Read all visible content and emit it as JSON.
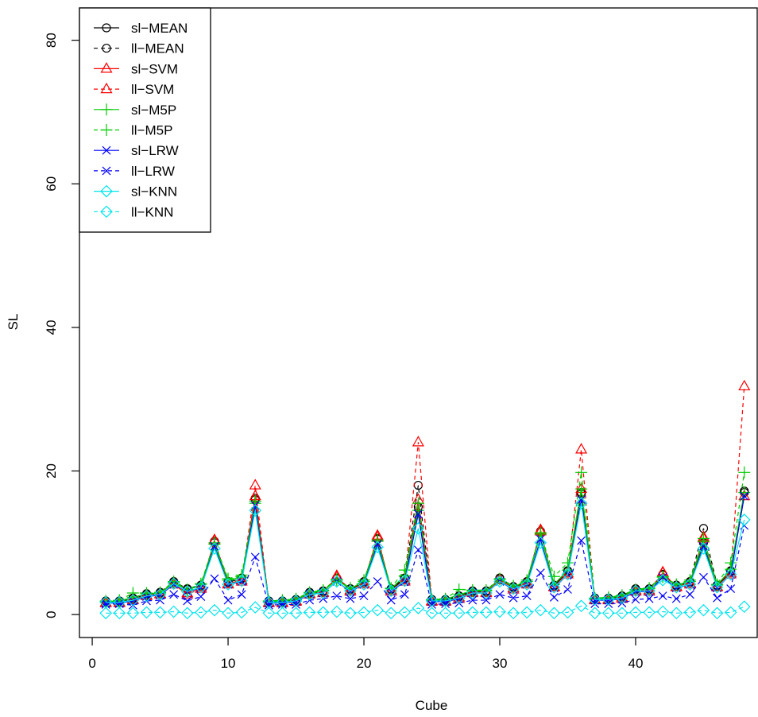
{
  "chart_data": {
    "type": "line",
    "xlabel": "Cube",
    "ylabel": "SL",
    "x": [
      1,
      2,
      3,
      4,
      5,
      6,
      7,
      8,
      9,
      10,
      11,
      12,
      13,
      14,
      15,
      16,
      17,
      18,
      19,
      20,
      21,
      22,
      23,
      24,
      25,
      26,
      27,
      28,
      29,
      30,
      31,
      32,
      33,
      34,
      35,
      36,
      37,
      38,
      39,
      40,
      41,
      42,
      43,
      44,
      45,
      46,
      47,
      48
    ],
    "xlim": [
      -0.94,
      48.95
    ],
    "ylim": [
      -3.2,
      84.5
    ],
    "xticks": [
      0,
      10,
      20,
      30,
      40
    ],
    "yticks": [
      0,
      20,
      40,
      60,
      80
    ],
    "legend": "top-left",
    "series": [
      {
        "name": "sl−MEAN",
        "color": "#000000",
        "linestyle": "solid",
        "marker": "circle",
        "values": [
          1.8,
          1.8,
          2.2,
          2.8,
          3.0,
          4.5,
          3.5,
          4.0,
          10.0,
          4.5,
          5.0,
          16.0,
          1.8,
          1.8,
          2.0,
          3.0,
          3.2,
          5.0,
          3.5,
          4.5,
          10.5,
          3.5,
          5.0,
          15.0,
          2.0,
          2.0,
          2.5,
          3.2,
          3.2,
          5.0,
          3.8,
          4.5,
          11.5,
          4.0,
          6.0,
          17.0,
          2.2,
          2.2,
          2.5,
          3.5,
          3.5,
          5.5,
          4.0,
          4.5,
          10.0,
          4.0,
          6.0,
          17.0
        ]
      },
      {
        "name": "ll−MEAN",
        "color": "#000000",
        "linestyle": "dashed",
        "marker": "circle",
        "values": [
          1.9,
          1.9,
          2.3,
          2.9,
          3.1,
          4.6,
          3.6,
          4.1,
          10.2,
          4.6,
          5.1,
          16.2,
          1.9,
          1.9,
          2.1,
          3.1,
          3.3,
          5.1,
          3.6,
          4.6,
          10.6,
          3.6,
          5.1,
          18.0,
          2.1,
          2.1,
          2.6,
          3.3,
          3.3,
          5.1,
          3.9,
          4.6,
          11.6,
          4.1,
          6.1,
          16.8,
          2.3,
          2.3,
          2.6,
          3.6,
          3.6,
          5.6,
          4.1,
          4.6,
          12.0,
          4.1,
          6.1,
          17.2
        ]
      },
      {
        "name": "sl−SVM",
        "color": "#ff0000",
        "linestyle": "solid",
        "marker": "triangle",
        "values": [
          1.7,
          1.7,
          2.1,
          2.7,
          2.9,
          4.4,
          3.0,
          3.8,
          10.3,
          4.3,
          4.8,
          16.5,
          1.7,
          1.7,
          1.9,
          2.9,
          3.1,
          5.2,
          3.4,
          4.4,
          10.8,
          3.4,
          4.8,
          16.0,
          1.9,
          1.9,
          2.4,
          3.1,
          3.1,
          4.9,
          3.7,
          4.4,
          11.6,
          3.9,
          5.8,
          17.5,
          2.1,
          2.1,
          2.4,
          3.4,
          3.4,
          5.8,
          3.9,
          4.4,
          10.6,
          3.9,
          5.8,
          16.5
        ]
      },
      {
        "name": "ll−SVM",
        "color": "#ff0000",
        "linestyle": "dashed",
        "marker": "triangle",
        "values": [
          1.6,
          1.6,
          2.0,
          2.6,
          2.8,
          4.2,
          2.8,
          3.6,
          10.4,
          4.2,
          4.6,
          18.0,
          1.6,
          1.6,
          1.8,
          2.8,
          3.0,
          5.4,
          3.2,
          4.2,
          11.0,
          3.2,
          4.6,
          24.0,
          1.8,
          1.8,
          2.2,
          3.0,
          3.0,
          4.8,
          3.5,
          4.2,
          11.8,
          3.8,
          5.6,
          23.0,
          2.0,
          2.0,
          2.2,
          3.2,
          3.2,
          5.9,
          3.8,
          4.2,
          10.8,
          3.8,
          5.6,
          31.8
        ]
      },
      {
        "name": "sl−M5P",
        "color": "#00cc00",
        "linestyle": "solid",
        "marker": "plus",
        "values": [
          1.8,
          1.9,
          2.4,
          2.9,
          3.0,
          4.5,
          3.4,
          4.2,
          9.8,
          4.8,
          5.2,
          15.5,
          1.8,
          1.9,
          2.1,
          3.0,
          3.3,
          4.8,
          3.6,
          4.6,
          10.2,
          3.6,
          5.4,
          14.5,
          2.0,
          2.1,
          2.8,
          3.3,
          3.3,
          4.9,
          3.9,
          4.6,
          11.2,
          4.2,
          6.2,
          17.5,
          2.2,
          2.3,
          2.6,
          3.4,
          3.6,
          5.2,
          4.1,
          4.6,
          10.2,
          4.1,
          6.3,
          17.0
        ]
      },
      {
        "name": "ll−M5P",
        "color": "#00cc00",
        "linestyle": "dashed",
        "marker": "plus",
        "values": [
          1.9,
          2.0,
          3.0,
          3.0,
          3.1,
          4.6,
          3.5,
          4.3,
          10.0,
          5.0,
          5.5,
          15.8,
          1.9,
          2.0,
          2.2,
          3.1,
          3.4,
          4.9,
          3.7,
          4.8,
          10.4,
          3.7,
          6.2,
          15.5,
          2.1,
          2.2,
          3.5,
          3.4,
          3.4,
          5.0,
          4.0,
          4.8,
          11.4,
          5.3,
          7.2,
          19.8,
          2.3,
          2.4,
          2.7,
          3.5,
          3.7,
          5.3,
          4.2,
          4.8,
          10.6,
          4.2,
          7.2,
          19.8
        ]
      },
      {
        "name": "sl−LRW",
        "color": "#0000ff",
        "linestyle": "solid",
        "marker": "cross",
        "values": [
          1.6,
          1.6,
          1.9,
          2.5,
          2.7,
          4.2,
          3.2,
          3.7,
          9.5,
          4.2,
          4.6,
          15.2,
          1.6,
          1.6,
          1.8,
          2.8,
          3.0,
          4.6,
          3.2,
          4.2,
          9.8,
          3.2,
          4.6,
          14.0,
          1.8,
          1.8,
          2.2,
          3.0,
          3.0,
          4.6,
          3.5,
          4.2,
          10.5,
          3.7,
          5.6,
          16.0,
          2.0,
          2.0,
          2.2,
          3.2,
          3.2,
          5.2,
          3.7,
          4.2,
          9.5,
          3.7,
          5.6,
          16.5
        ]
      },
      {
        "name": "ll−LRW",
        "color": "#0000ff",
        "linestyle": "dashed",
        "marker": "cross",
        "values": [
          1.4,
          1.5,
          1.3,
          1.9,
          2.0,
          2.8,
          1.9,
          2.5,
          5.0,
          2.0,
          2.8,
          8.0,
          1.3,
          1.4,
          1.4,
          2.0,
          2.2,
          2.6,
          2.2,
          2.6,
          4.6,
          2.0,
          2.8,
          9.0,
          1.4,
          1.5,
          1.6,
          2.0,
          2.0,
          2.8,
          2.3,
          2.6,
          5.8,
          2.4,
          3.5,
          10.3,
          1.5,
          1.5,
          1.6,
          2.1,
          2.2,
          2.6,
          2.2,
          2.8,
          5.2,
          2.3,
          3.6,
          12.4
        ]
      },
      {
        "name": "sl−KNN",
        "color": "#00e5ee",
        "linestyle": "solid",
        "marker": "diamond",
        "values": [
          1.7,
          1.7,
          2.0,
          2.6,
          2.8,
          4.3,
          3.2,
          3.8,
          9.2,
          4.2,
          4.7,
          14.5,
          1.7,
          1.7,
          1.9,
          2.8,
          3.0,
          4.6,
          3.3,
          4.2,
          9.4,
          3.3,
          4.7,
          12.0,
          1.9,
          1.9,
          2.3,
          3.0,
          3.0,
          4.6,
          3.6,
          4.2,
          10.0,
          3.8,
          5.6,
          15.5,
          2.1,
          2.1,
          2.3,
          3.3,
          3.3,
          4.8,
          3.8,
          4.2,
          9.2,
          3.8,
          5.6,
          13.2
        ]
      },
      {
        "name": "ll−KNN",
        "color": "#00e5ee",
        "linestyle": "dashed",
        "marker": "diamond",
        "values": [
          0.2,
          0.2,
          0.2,
          0.3,
          0.3,
          0.4,
          0.2,
          0.3,
          0.6,
          0.2,
          0.3,
          1.0,
          0.2,
          0.2,
          0.2,
          0.3,
          0.3,
          0.4,
          0.2,
          0.3,
          0.6,
          0.2,
          0.3,
          0.9,
          0.2,
          0.2,
          0.2,
          0.3,
          0.3,
          0.4,
          0.2,
          0.3,
          0.6,
          0.2,
          0.3,
          1.2,
          0.2,
          0.2,
          0.2,
          0.3,
          0.3,
          0.4,
          0.2,
          0.3,
          0.6,
          0.2,
          0.3,
          1.1
        ]
      }
    ]
  }
}
